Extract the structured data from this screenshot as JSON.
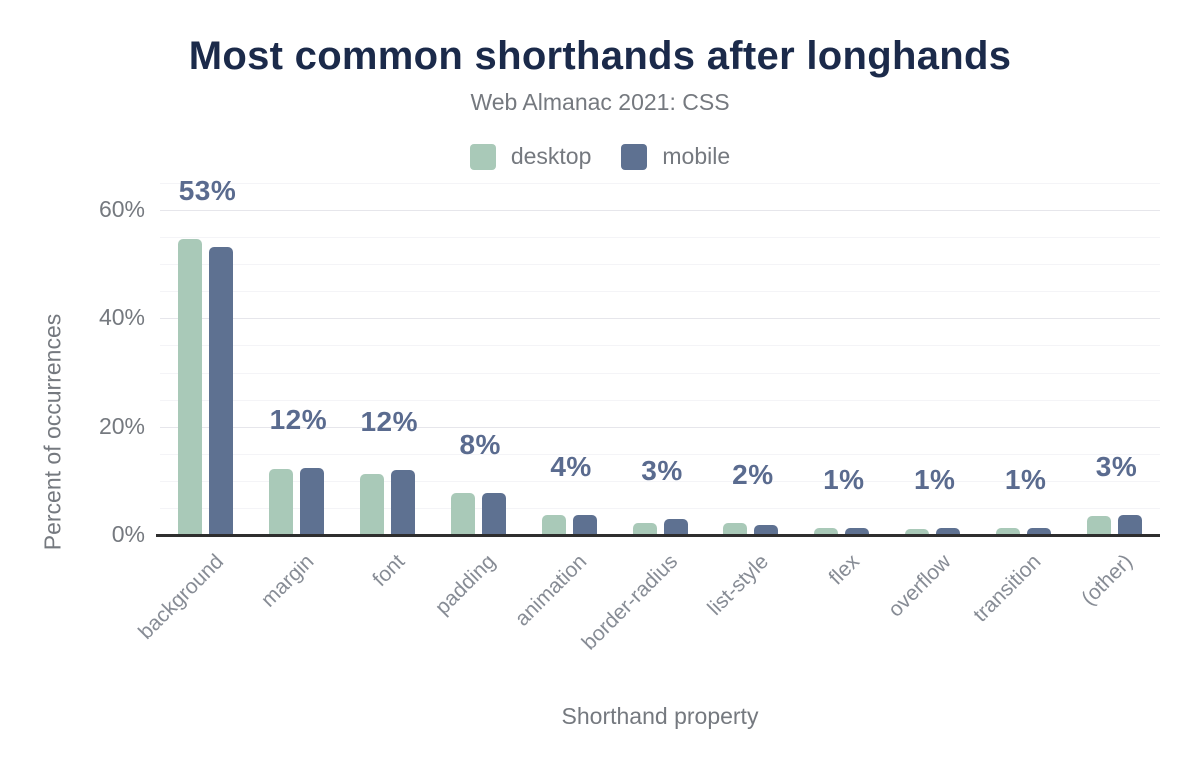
{
  "chart_data": {
    "type": "bar",
    "title": "Most common shorthands after longhands",
    "subtitle": "Web Almanac 2021: CSS",
    "xlabel": "Shorthand property",
    "ylabel": "Percent of occurrences",
    "categories": [
      "background",
      "margin",
      "font",
      "padding",
      "animation",
      "border-radius",
      "list-style",
      "flex",
      "overflow",
      "transition",
      "(other)"
    ],
    "series": [
      {
        "name": "desktop",
        "color": "#a9c9b8",
        "values": [
          54.5,
          12.0,
          11.1,
          7.5,
          3.5,
          2.0,
          2.0,
          1.1,
          0.9,
          1.1,
          3.4
        ]
      },
      {
        "name": "mobile",
        "color": "#5e7191",
        "values": [
          53.0,
          12.2,
          11.8,
          7.6,
          3.6,
          2.8,
          1.6,
          1.2,
          1.2,
          1.1,
          3.5
        ]
      }
    ],
    "bar_labels": [
      "53%",
      "12%",
      "12%",
      "8%",
      "4%",
      "3%",
      "2%",
      "1%",
      "1%",
      "1%",
      "3%"
    ],
    "y_ticks": [
      {
        "value": 0,
        "label": "0%"
      },
      {
        "value": 20,
        "label": "20%"
      },
      {
        "value": 40,
        "label": "40%"
      },
      {
        "value": 60,
        "label": "60%"
      }
    ],
    "ylim": [
      0,
      65
    ],
    "grid_step": 5,
    "grid": "horizontal-minor-and-major",
    "legend_position": "top-center",
    "colors": {
      "title_color": "#1b2a4a",
      "bar_label_color": "#5a6b8f",
      "muted_color": "#75797f",
      "xcat_color": "#878c95",
      "axis_color": "#2e2e2e",
      "grid_major": "#e6e6eb",
      "grid_minor": "#f4f4f7"
    }
  }
}
